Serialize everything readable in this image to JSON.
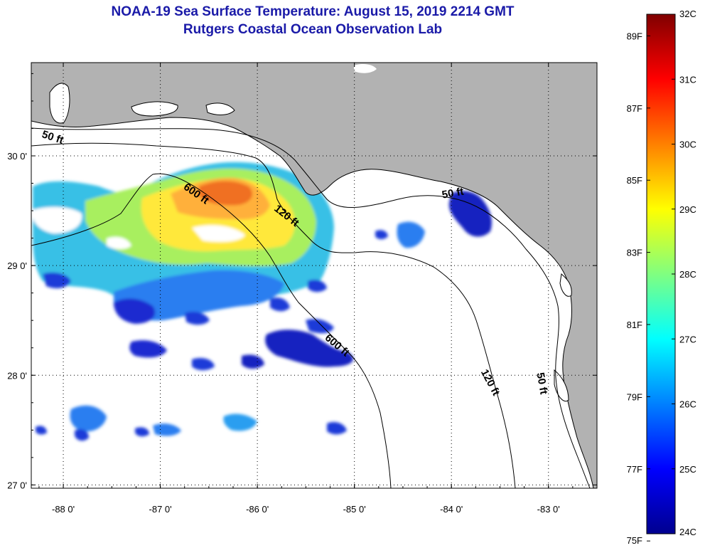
{
  "title": {
    "line1": "NOAA-19 Sea Surface Temperature:  August 15, 2019 2214 GMT",
    "line2": "Rutgers Coastal Ocean Observation Lab"
  },
  "map": {
    "lon_range": [
      -88.33,
      -82.5
    ],
    "lat_range": [
      26.97,
      30.85
    ],
    "x_ticks": [
      {
        "value": -88,
        "label": "-88 0'"
      },
      {
        "value": -87,
        "label": "-87 0'"
      },
      {
        "value": -86,
        "label": "-86 0'"
      },
      {
        "value": -85,
        "label": "-85 0'"
      },
      {
        "value": -84,
        "label": "-84 0'"
      },
      {
        "value": -83,
        "label": "-83 0'"
      }
    ],
    "y_ticks": [
      {
        "value": 30,
        "label": "30 0'"
      },
      {
        "value": 29,
        "label": "29 0'"
      },
      {
        "value": 28,
        "label": "28 0'"
      },
      {
        "value": 27,
        "label": "27 0'"
      }
    ],
    "grid": true,
    "land_color": "#b2b2b2",
    "ocean_color": "#ffffff",
    "contour_labels": [
      {
        "text": "50 ft",
        "lon": -88.12,
        "lat": 30.14,
        "angle": 18
      },
      {
        "text": "600 ft",
        "lon": -86.65,
        "lat": 29.63,
        "angle": 35
      },
      {
        "text": "120 ft",
        "lon": -85.72,
        "lat": 29.43,
        "angle": 38
      },
      {
        "text": "50 ft",
        "lon": -83.98,
        "lat": 29.63,
        "angle": -10
      },
      {
        "text": "600 ft",
        "lon": -85.2,
        "lat": 28.25,
        "angle": 40
      },
      {
        "text": "120 ft",
        "lon": -83.63,
        "lat": 27.92,
        "angle": 62
      },
      {
        "text": "50 ft",
        "lon": -83.1,
        "lat": 27.92,
        "angle": 80
      }
    ]
  },
  "colorbar": {
    "celsius_ticks": [
      "32C",
      "31C",
      "30C",
      "29C",
      "28C",
      "27C",
      "26C",
      "25C",
      "24C"
    ],
    "fahrenheit_ticks": [
      "89F",
      "87F",
      "85F",
      "83F",
      "81F",
      "79F",
      "77F",
      "75F"
    ],
    "celsius_range": [
      24,
      32
    ],
    "fahrenheit_values": [
      89,
      87,
      85,
      83,
      81,
      79,
      77,
      75
    ],
    "colors": [
      "#00008f",
      "#0000ff",
      "#0080ff",
      "#00ffff",
      "#80ff80",
      "#ffff00",
      "#ff8000",
      "#ff0000",
      "#800000"
    ]
  }
}
